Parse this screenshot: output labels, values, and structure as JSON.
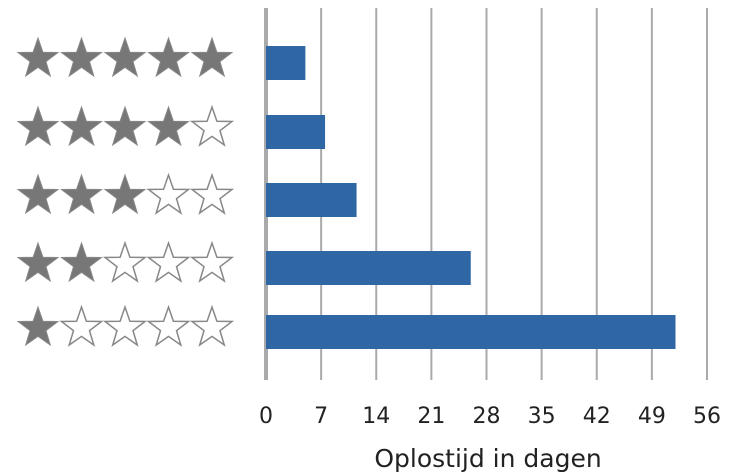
{
  "chart_data": {
    "type": "bar",
    "orientation": "horizontal",
    "categories": [
      5,
      4,
      3,
      2,
      1
    ],
    "values": [
      5,
      7.5,
      11.5,
      26,
      52
    ],
    "color": "#2e67a3",
    "xlabel": "Oplostijd in dagen",
    "xlim": [
      0,
      56
    ],
    "xticks": [
      0,
      7,
      14,
      21,
      28,
      35,
      42,
      49,
      56
    ],
    "grid": true
  }
}
